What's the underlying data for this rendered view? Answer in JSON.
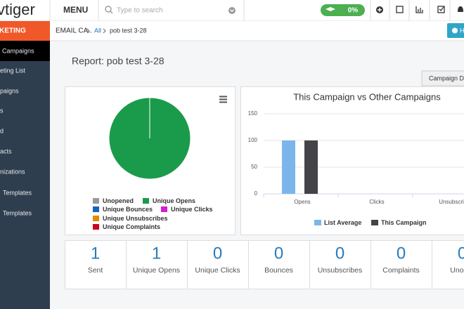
{
  "top_bar": {
    "logo": "vtiger",
    "menu": "MENU",
    "search_placeholder": "Type to search",
    "progress": "0%"
  },
  "sidebar": {
    "module": "KETING",
    "items": [
      "Campaigns",
      "eting List",
      "paigns",
      "s",
      "d",
      "acts",
      "nizations",
      "Templates",
      "Templates"
    ]
  },
  "breadcrumb": {
    "module": "EMAIL CA..",
    "list": "All",
    "record": "pob test 3-28"
  },
  "help_button": "H",
  "report_title": "Report: pob test 3-28",
  "tab": "Campaign D",
  "pie_chart": {
    "type": "pie",
    "categories": [
      "Unopened",
      "Unique Opens",
      "Unique Bounces",
      "Unique Clicks",
      "Unique Unsubscribes",
      "Unique Complaints"
    ],
    "colors": [
      "#999999",
      "#1a9b4b",
      "#1565c0",
      "#d81bd8",
      "#e68a00",
      "#d0021b"
    ],
    "values": [
      0,
      1,
      0,
      0,
      0,
      0
    ]
  },
  "bar_chart": {
    "type": "bar",
    "title": "This Campaign vs Other Campaigns",
    "categories": [
      "Opens",
      "Clicks",
      "Unsubscri"
    ],
    "series": [
      {
        "name": "List Average",
        "color": "#7cb5ec",
        "values": [
          100,
          0,
          0
        ]
      },
      {
        "name": "This Campaign",
        "color": "#434348",
        "values": [
          100,
          0,
          0
        ]
      }
    ],
    "ylim": [
      0,
      150
    ],
    "yticks": [
      0,
      50,
      100,
      150
    ],
    "grid": true
  },
  "stats": [
    {
      "value": 1,
      "label": "Sent"
    },
    {
      "value": 1,
      "label": "Unique Opens"
    },
    {
      "value": 0,
      "label": "Unique Clicks"
    },
    {
      "value": 0,
      "label": "Bounces"
    },
    {
      "value": 0,
      "label": "Unsubscribes"
    },
    {
      "value": 0,
      "label": "Complaints"
    },
    {
      "value": 0,
      "label": "Unoper"
    }
  ]
}
